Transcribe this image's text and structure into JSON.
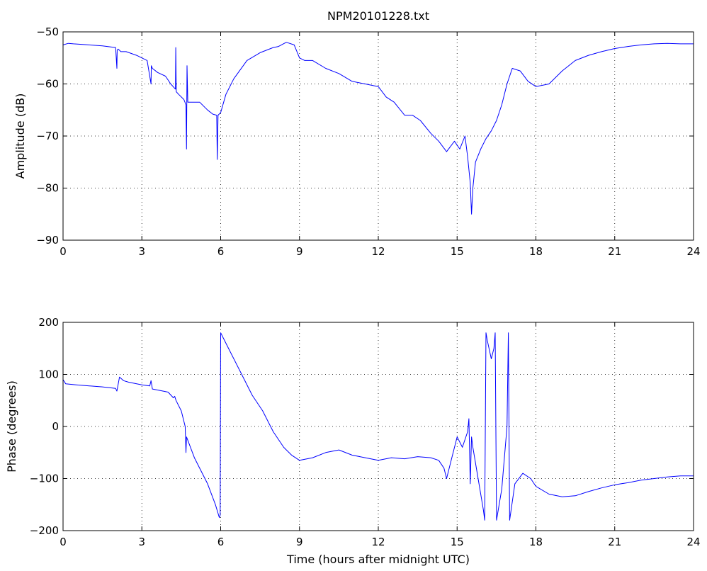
{
  "figure_title": "NPM20101228.txt",
  "chart_data": [
    {
      "type": "line",
      "title": "NPM20101228.txt",
      "xlabel": "",
      "ylabel": "Amplitude (dB)",
      "xlim": [
        0,
        24
      ],
      "ylim": [
        -90,
        -50
      ],
      "xticks": [
        0,
        3,
        6,
        9,
        12,
        15,
        18,
        21,
        24
      ],
      "yticks": [
        -90,
        -80,
        -70,
        -60,
        -50
      ],
      "grid": true,
      "line_color": "#0000ff",
      "series": [
        {
          "x": [
            0,
            0.2,
            0.4,
            1.0,
            1.5,
            2.0,
            2.05,
            2.06,
            2.1,
            2.2,
            2.4,
            2.8,
            3.2,
            3.35,
            3.36,
            3.4,
            3.6,
            3.9,
            4.1,
            4.28,
            4.29,
            4.31,
            4.4,
            4.6,
            4.68,
            4.7,
            4.72,
            4.75,
            4.9,
            5.2,
            5.5,
            5.7,
            5.85,
            5.87,
            5.9,
            6.0,
            6.2,
            6.5,
            7.0,
            7.5,
            8.0,
            8.2,
            8.5,
            8.8,
            9.0,
            9.2,
            9.5,
            10.0,
            10.5,
            11.0,
            11.5,
            12.0,
            12.3,
            12.6,
            13.0,
            13.3,
            13.6,
            14.0,
            14.3,
            14.6,
            14.9,
            15.1,
            15.3,
            15.4,
            15.5,
            15.55,
            15.6,
            15.7,
            15.9,
            16.1,
            16.3,
            16.5,
            16.7,
            16.9,
            17.1,
            17.4,
            17.7,
            18.0,
            18.5,
            19.0,
            19.5,
            20.0,
            20.5,
            21.0,
            21.5,
            22.0,
            22.5,
            23.0,
            23.5,
            24.0
          ],
          "values": [
            -52.5,
            -52.2,
            -52.3,
            -52.5,
            -52.7,
            -53.0,
            -57.0,
            -53.5,
            -53.3,
            -53.8,
            -53.8,
            -54.5,
            -55.5,
            -60.0,
            -56.5,
            -57.0,
            -57.8,
            -58.5,
            -60.0,
            -61.0,
            -53.0,
            -61.5,
            -62.0,
            -63.0,
            -64.0,
            -72.5,
            -56.5,
            -63.5,
            -63.5,
            -63.5,
            -65.0,
            -65.8,
            -66.0,
            -74.5,
            -66.0,
            -65.5,
            -62.0,
            -59.0,
            -55.5,
            -54.0,
            -53.0,
            -52.8,
            -52.0,
            -52.5,
            -55.0,
            -55.5,
            -55.5,
            -57.0,
            -58.0,
            -59.5,
            -60.0,
            -60.5,
            -62.5,
            -63.5,
            -66.0,
            -66.0,
            -67.0,
            -69.5,
            -71.0,
            -73.0,
            -71.0,
            -72.5,
            -70.0,
            -74.0,
            -79.0,
            -85.0,
            -80.0,
            -75.0,
            -72.5,
            -70.5,
            -69.0,
            -67.0,
            -64.0,
            -60.0,
            -57.0,
            -57.5,
            -59.5,
            -60.5,
            -60.0,
            -57.5,
            -55.5,
            -54.5,
            -53.8,
            -53.2,
            -52.8,
            -52.5,
            -52.3,
            -52.2,
            -52.3,
            -52.3
          ]
        }
      ]
    },
    {
      "type": "line",
      "title": "",
      "xlabel": "Time (hours after midnight UTC)",
      "ylabel": "Phase (degrees)",
      "xlim": [
        0,
        24
      ],
      "ylim": [
        -200,
        200
      ],
      "xticks": [
        0,
        3,
        6,
        9,
        12,
        15,
        18,
        21,
        24
      ],
      "yticks": [
        -200,
        -100,
        0,
        100,
        200
      ],
      "grid": true,
      "line_color": "#0000ff",
      "series": [
        {
          "x": [
            0,
            0.1,
            0.5,
            1.0,
            1.5,
            2.0,
            2.05,
            2.15,
            2.3,
            2.5,
            3.0,
            3.3,
            3.35,
            3.4,
            3.8,
            4.0,
            4.2,
            4.25,
            4.3,
            4.5,
            4.65,
            4.68,
            4.7,
            5.0,
            5.5,
            5.8,
            5.95,
            5.98,
            6.0,
            6.1,
            6.4,
            6.8,
            7.2,
            7.6,
            8.0,
            8.4,
            8.7,
            9.0,
            9.5,
            10.0,
            10.5,
            11.0,
            11.5,
            12.0,
            12.5,
            13.0,
            13.5,
            14.0,
            14.3,
            14.5,
            14.6,
            14.8,
            15.0,
            15.2,
            15.4,
            15.45,
            15.5,
            15.55,
            15.6,
            15.8,
            16.0,
            16.05,
            16.1,
            16.15,
            16.3,
            16.4,
            16.45,
            16.5,
            16.7,
            16.9,
            16.95,
            17.0,
            17.2,
            17.5,
            17.8,
            18.0,
            18.5,
            19.0,
            19.5,
            20.0,
            20.5,
            21.0,
            21.5,
            22.0,
            22.5,
            23.0,
            23.5,
            24.0
          ],
          "values": [
            90,
            82,
            80,
            78,
            76,
            73,
            68,
            95,
            88,
            85,
            80,
            78,
            88,
            72,
            68,
            66,
            55,
            58,
            50,
            30,
            0,
            -50,
            -20,
            -60,
            -110,
            -150,
            -175,
            -170,
            180,
            170,
            140,
            100,
            60,
            30,
            -10,
            -40,
            -55,
            -65,
            -60,
            -50,
            -45,
            -55,
            -60,
            -65,
            -60,
            -62,
            -58,
            -60,
            -65,
            -80,
            -100,
            -60,
            -20,
            -40,
            -10,
            15,
            -110,
            -20,
            -40,
            -100,
            -160,
            -180,
            180,
            165,
            130,
            150,
            180,
            -180,
            -120,
            0,
            180,
            -180,
            -110,
            -90,
            -100,
            -115,
            -130,
            -135,
            -133,
            -125,
            -118,
            -112,
            -108,
            -103,
            -100,
            -97,
            -95,
            -95
          ]
        }
      ]
    }
  ]
}
